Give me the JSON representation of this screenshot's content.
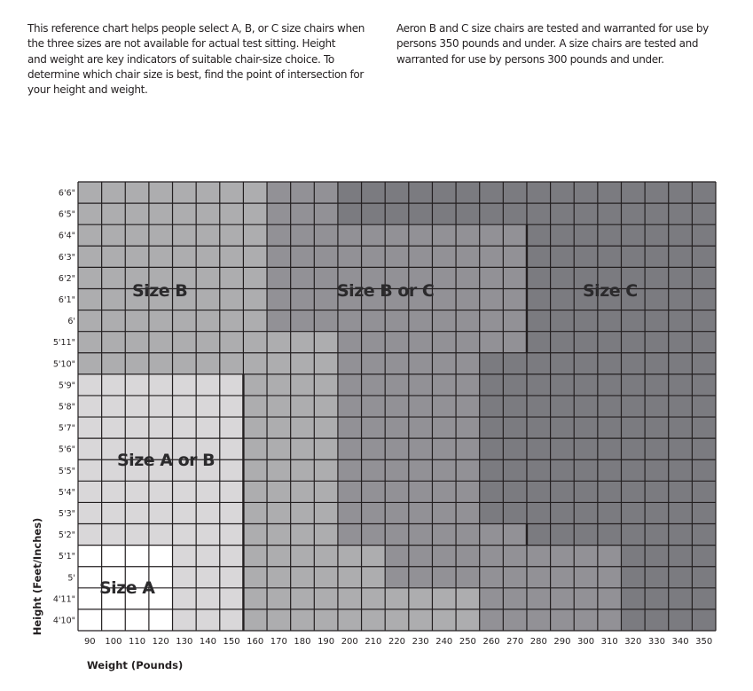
{
  "intro": {
    "left_lines": [
      "This reference chart helps people select A, B, or C size chairs when",
      "the three sizes are not available for actual test sitting. Height",
      "and weight are key indicators of suitable chair-size choice. To",
      "determine which chair size is best, find the point of intersection for",
      "your height and weight."
    ],
    "right_lines": [
      "Aeron B and C size chairs are tested and warranted for use by",
      "persons 350 pounds and under. A size chairs are tested and",
      "warranted for use by persons 300 pounds and under."
    ]
  },
  "chart_data": {
    "type": "heatmap",
    "xlabel": "Weight (Pounds)",
    "ylabel": "Height (Feet/Inches)",
    "x_categories": [
      "90",
      "100",
      "110",
      "120",
      "130",
      "140",
      "150",
      "160",
      "170",
      "180",
      "190",
      "200",
      "210",
      "220",
      "230",
      "240",
      "250",
      "260",
      "270",
      "280",
      "290",
      "300",
      "310",
      "320",
      "330",
      "340",
      "350"
    ],
    "y_categories_top_to_bottom": [
      "6'6\"",
      "6'5\"",
      "6'4\"",
      "6'3\"",
      "6'2\"",
      "6'1\"",
      "6'",
      "5'11\"",
      "5'10\"",
      "5'9\"",
      "5'8\"",
      "5'7\"",
      "5'6\"",
      "5'5\"",
      "5'4\"",
      "5'3\"",
      "5'2\"",
      "5'1\"",
      "5'",
      "4'11\"",
      "4'10\""
    ],
    "shade_colors": {
      "W": "#ffffff",
      "L": "#d9d7d9",
      "M": "#adadaf",
      "D": "#929196",
      "X": "#7b7b80"
    },
    "shade_grid_top_to_bottom": [
      "MMMMMMMMDDDXXXXXXXXXXXXXXXX",
      "MMMMMMMMDDDXXXXXXXXXXXXXXXX",
      "MMMMMMMMDDDDDDDDDDDXXXXXXXX",
      "MMMMMMMMDDDDDDDDDDDXXXXXXXX",
      "MMMMMMMMDDDDDDDDDDDXXXXXXXX",
      "MMMMMMMMDDDDDDDDDDDXXXXXXXX",
      "MMMMMMMMDDDDDDDDDDDXXXXXXXX",
      "MMMMMMMMMMMDDDDDDDDXXXXXXXX",
      "MMMMMMMMMMMDDDDDDXXXXXXXXXX",
      "LLLLLLLMMMMDDDDDDXXXXXXXXXX",
      "LLLLLLLMMMMDDDDDDXXXXXXXXXX",
      "LLLLLLLMMMMDDDDDDXXXXXXXXXX",
      "LLLLLLLMMMMDDDDDDXXXXXXXXXX",
      "LLLLLLLMMMMDDDDDDXXXXXXXXXX",
      "LLLLLLLMMMMDDDDDDXXXXXXXXXX",
      "LLLLLLLMMMMDDDDDDXXXXXXXXXX",
      "LLLLLLLMMMMDDDDDDDDXXXXXXXX",
      "WWWWLLLMMMMMMDDDDDDDDDDXXXX",
      "WWWWLLLMMMMMMDDDDDDDDDDXXXX",
      "WWWWLLLMMMMMMMMMMDDDDDDXXXX",
      "WWWWLLLMMMMMMMMMMDDDDDDXXXX"
    ],
    "regions": [
      "Size A",
      "Size A or B",
      "Size B",
      "Size B or C",
      "Size C"
    ],
    "grid": true
  }
}
